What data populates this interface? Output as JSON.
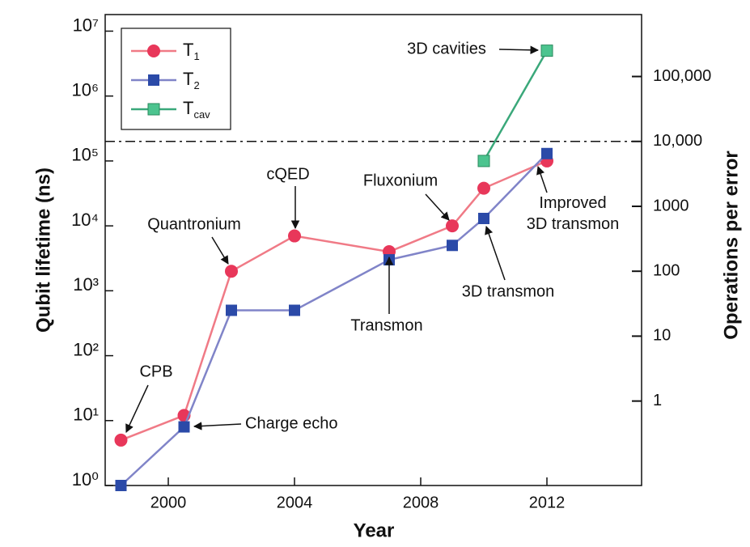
{
  "chart_data": {
    "type": "line",
    "xlabel": "Year",
    "ylabel": "Qubit lifetime (ns)",
    "y2label": "Operations per error",
    "xlim": [
      1998,
      2015
    ],
    "xticks": [
      2000,
      2004,
      2008,
      2012
    ],
    "ylim": [
      1,
      18000000
    ],
    "log_y": true,
    "yticks": [
      {
        "value": 1,
        "label": "10⁰"
      },
      {
        "value": 10,
        "label": "10¹"
      },
      {
        "value": 100,
        "label": "10²"
      },
      {
        "value": 1000,
        "label": "10³"
      },
      {
        "value": 10000,
        "label": "10⁴"
      },
      {
        "value": 100000,
        "label": "10⁵"
      },
      {
        "value": 1000000,
        "label": "10⁶"
      },
      {
        "value": 10000000,
        "label": "10⁷"
      }
    ],
    "y2lim": [
      0.05,
      900000
    ],
    "y2ticks": [
      1,
      10,
      100,
      1000,
      {
        "value": 10000,
        "label": "10,000"
      },
      {
        "value": 100000,
        "label": "100,000"
      }
    ],
    "threshold_y2": 10000,
    "legend": "upper left",
    "series": [
      {
        "name": "T1",
        "color": "#e8375a",
        "line_color": "#f07a86",
        "marker": "circle",
        "x": [
          1998.5,
          2000.5,
          2002,
          2004,
          2007,
          2009,
          2010,
          2012
        ],
        "values": [
          5,
          12,
          2000,
          7000,
          4000,
          10000,
          38000,
          100000
        ]
      },
      {
        "name": "T2",
        "color": "#2b4aa8",
        "line_color": "#8084c8",
        "marker": "square",
        "x": [
          1998.5,
          2000.5,
          2002,
          2004,
          2007,
          2009,
          2010,
          2012
        ],
        "values": [
          1,
          8,
          500,
          500,
          3000,
          5000,
          13000,
          130000
        ]
      },
      {
        "name": "Tcav",
        "color": "#4cc48f",
        "line_color": "#3aa87a",
        "marker": "square",
        "x": [
          2010,
          2012
        ],
        "values": [
          100000,
          5000000
        ]
      }
    ],
    "annotations": [
      "CPB",
      "Charge echo",
      "Quantronium",
      "cQED",
      "Transmon",
      "Fluxonium",
      "3D cavities",
      "3D transmon",
      "Improved 3D transmon"
    ]
  }
}
